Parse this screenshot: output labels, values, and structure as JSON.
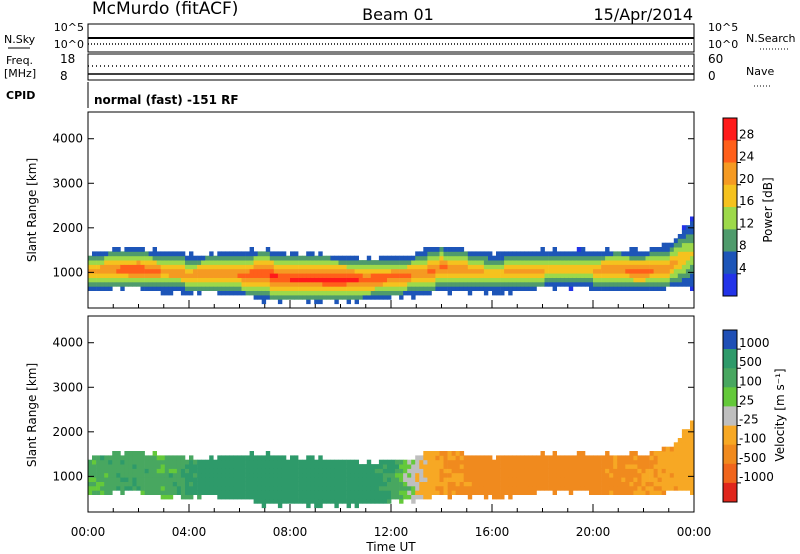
{
  "header": {
    "station": "McMurdo (fitACF)",
    "beam": "Beam 01",
    "date": "15/Apr/2014"
  },
  "top_panels": {
    "nsky_label": "N.Sky",
    "nsky_ticks": [
      "10^5",
      "10^0"
    ],
    "nsearch_label": "N.Search",
    "nsearch_ticks": [
      "10^5",
      "10^0"
    ],
    "freq_label": "Freq.",
    "freq_unit": "[MHz]",
    "freq_ticks": [
      "18",
      "8"
    ],
    "nave_label": "Nave",
    "nave_ticks": [
      "60",
      "0"
    ],
    "cpid_label": "CPID",
    "cpid_text": "normal (fast) -151 RF"
  },
  "colorbars": {
    "power": {
      "label": "Power [dB]",
      "ticks": [
        "28",
        "24",
        "20",
        "16",
        "12",
        "8",
        "4"
      ],
      "colors": [
        "#ff1a1a",
        "#ff5f1a",
        "#f59a22",
        "#f5c21e",
        "#9dd94a",
        "#4f9b6c",
        "#1d55b8",
        "#2233e8"
      ]
    },
    "velocity": {
      "label": "Velocity [m s⁻¹]",
      "ticks": [
        "1000",
        "500",
        "100",
        "25",
        "-25",
        "-100",
        "-500",
        "-1000"
      ],
      "colors": [
        "#1f4fb6",
        "#2e9a6a",
        "#48a760",
        "#64c93a",
        "#bfbfbf",
        "#f7a824",
        "#f08a1e",
        "#f0651c",
        "#e0261c"
      ]
    }
  },
  "chart_data": [
    {
      "type": "heatmap",
      "title": "Power",
      "xlabel": "",
      "ylabel": "Slant Range [km]",
      "ylim": [
        200,
        4600
      ],
      "yticks": [
        "4000",
        "3000",
        "2000",
        "1000"
      ],
      "xlim_hours": [
        0,
        24
      ],
      "xticks": [
        "00:00",
        "04:00",
        "08:00",
        "12:00",
        "16:00",
        "20:00",
        "00:00"
      ],
      "colorbar": "Power [dB]",
      "echo_band": {
        "time_hours": [
          0,
          1,
          2,
          3,
          4,
          5,
          6,
          7,
          8,
          9,
          10,
          11,
          12,
          13,
          14,
          15,
          16,
          17,
          18,
          19,
          20,
          21,
          22,
          23,
          24
        ],
        "lower_km": [
          600,
          650,
          650,
          600,
          550,
          550,
          500,
          400,
          350,
          350,
          350,
          400,
          450,
          500,
          600,
          600,
          550,
          600,
          650,
          650,
          650,
          600,
          600,
          650,
          700
        ],
        "upper_km": [
          1400,
          1500,
          1500,
          1450,
          1400,
          1400,
          1450,
          1500,
          1400,
          1400,
          1350,
          1300,
          1350,
          1400,
          1600,
          1500,
          1400,
          1450,
          1500,
          1500,
          1500,
          1500,
          1450,
          1600,
          2200
        ],
        "peak_power_db": [
          22,
          26,
          28,
          24,
          22,
          24,
          26,
          28,
          30,
          30,
          30,
          28,
          26,
          24,
          26,
          24,
          20,
          22,
          22,
          18,
          22,
          24,
          26,
          24,
          16
        ]
      }
    },
    {
      "type": "heatmap",
      "title": "Velocity",
      "xlabel": "Time UT",
      "ylabel": "Slant Range [km]",
      "ylim": [
        200,
        4600
      ],
      "yticks": [
        "4000",
        "3000",
        "2000",
        "1000"
      ],
      "xlim_hours": [
        0,
        24
      ],
      "xticks": [
        "00:00",
        "04:00",
        "08:00",
        "12:00",
        "16:00",
        "20:00",
        "00:00"
      ],
      "colorbar": "Velocity [m s⁻¹]",
      "echo_band": {
        "time_hours": [
          0,
          1,
          2,
          3,
          4,
          5,
          6,
          7,
          8,
          9,
          10,
          11,
          12,
          13,
          14,
          15,
          16,
          17,
          18,
          19,
          20,
          21,
          22,
          23,
          24
        ],
        "lower_km": [
          600,
          650,
          650,
          600,
          550,
          550,
          500,
          400,
          350,
          350,
          350,
          400,
          450,
          500,
          600,
          600,
          550,
          600,
          650,
          650,
          650,
          600,
          600,
          650,
          700
        ],
        "upper_km": [
          1400,
          1500,
          1500,
          1450,
          1400,
          1400,
          1450,
          1500,
          1400,
          1400,
          1350,
          1300,
          1350,
          1400,
          1600,
          1500,
          1400,
          1450,
          1500,
          1500,
          1500,
          1500,
          1450,
          1600,
          2200
        ],
        "velocity_ms": [
          60,
          80,
          80,
          60,
          100,
          150,
          200,
          200,
          200,
          250,
          200,
          150,
          100,
          0,
          -100,
          -120,
          -150,
          -150,
          -150,
          -150,
          -130,
          -120,
          -100,
          -80,
          -60
        ]
      }
    }
  ]
}
